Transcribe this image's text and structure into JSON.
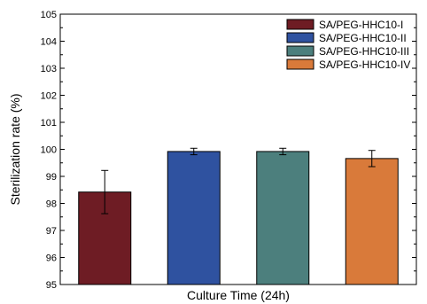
{
  "chart_data": {
    "type": "bar",
    "categories": [
      "SA/PEG-HHC10-I",
      "SA/PEG-HHC10-II",
      "SA/PEG-HHC10-III",
      "SA/PEG-HHC10-IV"
    ],
    "values": [
      98.42,
      99.92,
      99.92,
      99.66
    ],
    "errors": [
      0.8,
      0.12,
      0.12,
      0.3
    ],
    "colors": [
      "#6e1c24",
      "#2f52a0",
      "#4c7f7d",
      "#d97a3a"
    ],
    "xlabel": "Culture Time (24h)",
    "ylabel": "Sterilization rate (%)",
    "ylim": [
      95,
      105
    ],
    "yticks": [
      "95",
      "96",
      "97",
      "98",
      "99",
      "100",
      "101",
      "102",
      "103",
      "104",
      "105"
    ],
    "grid": false,
    "legend": {
      "placement": "top-right",
      "entries": [
        "SA/PEG-HHC10-I",
        "SA/PEG-HHC10-II",
        "SA/PEG-HHC10-III",
        "SA/PEG-HHC10-IV"
      ]
    }
  }
}
